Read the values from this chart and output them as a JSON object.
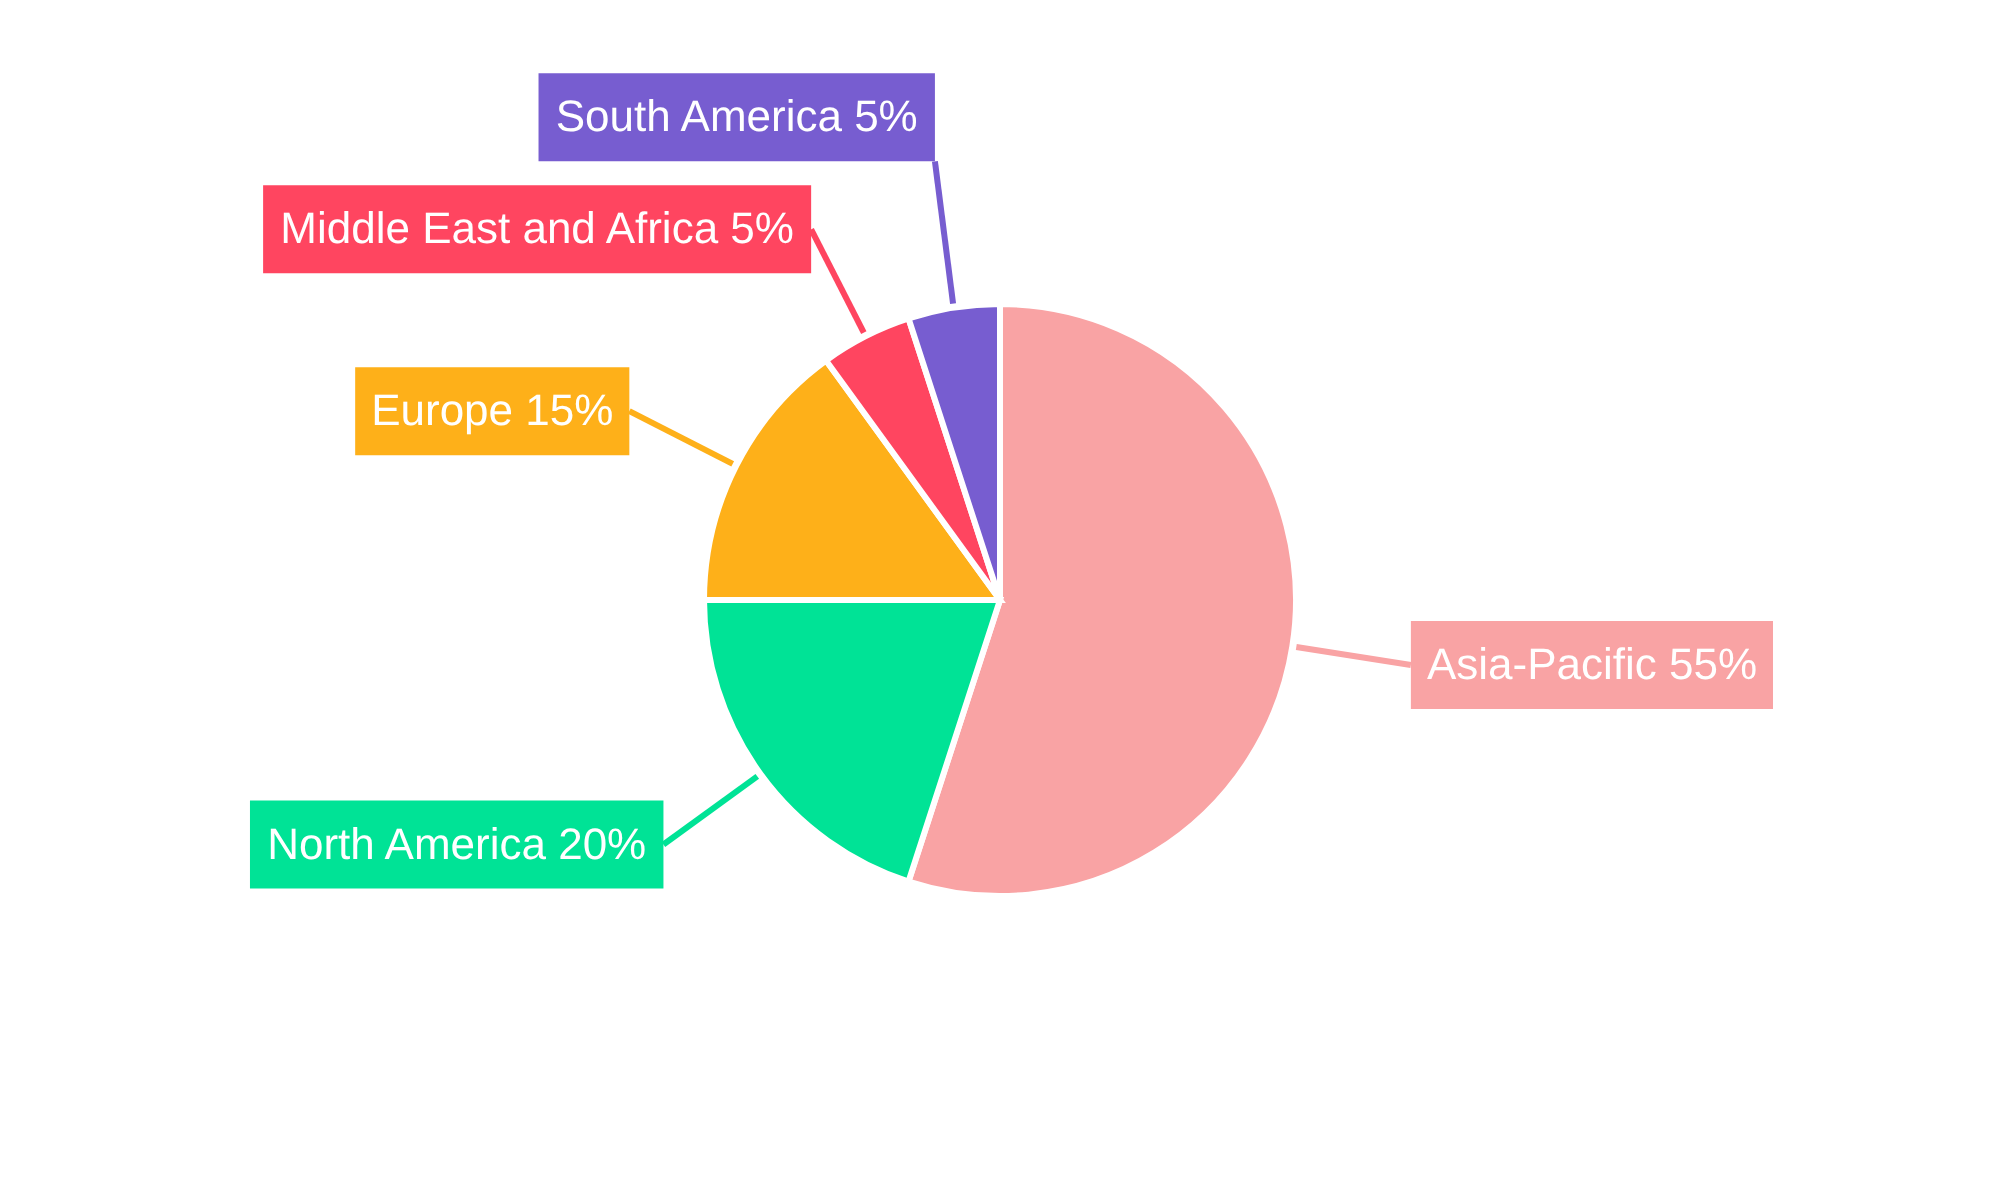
{
  "chart_data": {
    "type": "pie",
    "categories": [
      "Asia-Pacific",
      "North America",
      "Europe",
      "Middle East and Africa",
      "South America"
    ],
    "values": [
      55,
      20,
      15,
      5,
      5
    ],
    "colors": [
      "#f9a3a4",
      "#00e396",
      "#feb019",
      "#ff4560",
      "#775dd0"
    ],
    "value_labels": [
      "55%",
      "20%",
      "15%",
      "5%",
      "5%"
    ]
  }
}
